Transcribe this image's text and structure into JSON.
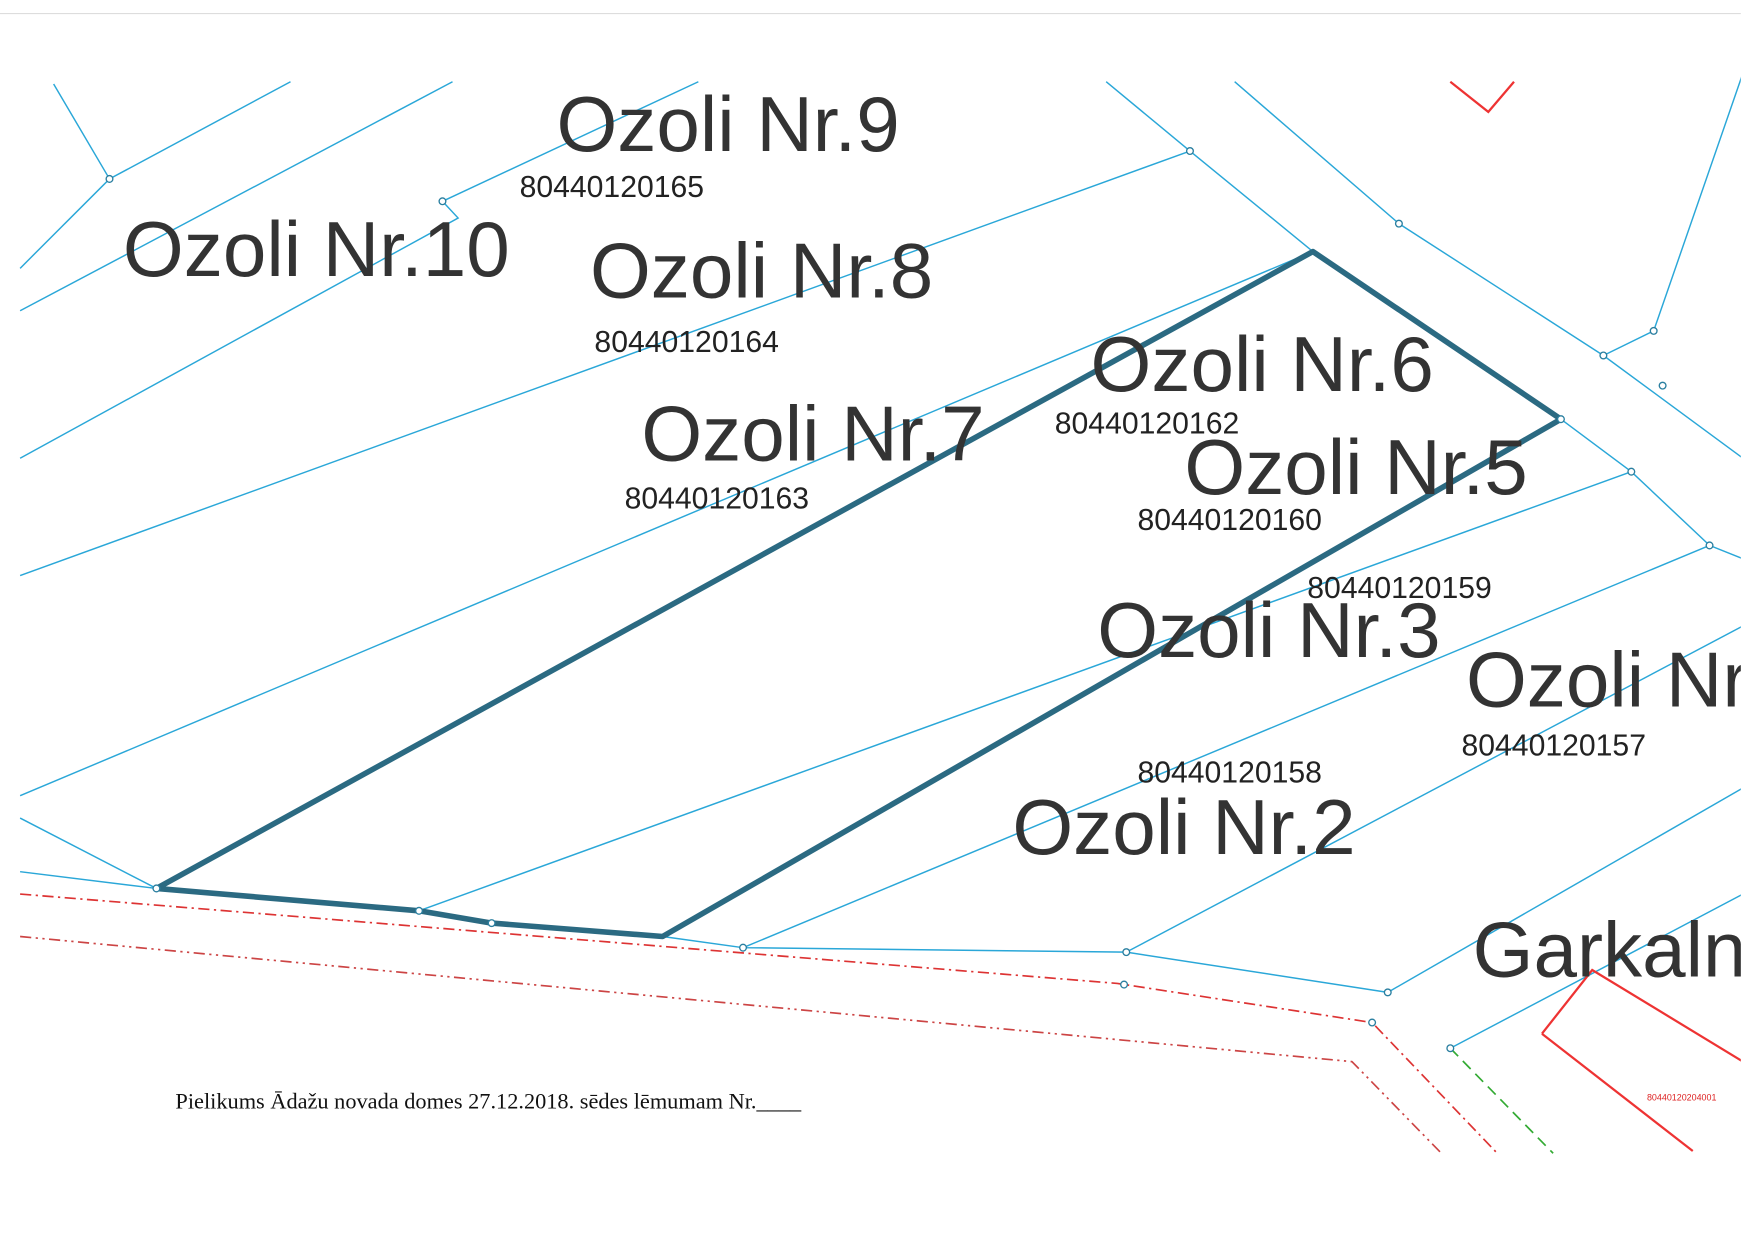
{
  "parcels": [
    {
      "name": "Ozoli Nr.9",
      "code": "80440120165"
    },
    {
      "name": "Ozoli Nr.10"
    },
    {
      "name": "Ozoli Nr.8",
      "code": "80440120164"
    },
    {
      "name": "Ozoli Nr.7",
      "code": "80440120163"
    },
    {
      "name": "Ozoli Nr.6",
      "code": "80440120162"
    },
    {
      "name": "Ozoli Nr.5",
      "code": "80440120160"
    },
    {
      "code": "80440120159"
    },
    {
      "name": "Ozoli Nr.3"
    },
    {
      "name": "Ozoli Nr",
      "code": "80440120157"
    },
    {
      "name": "Ozoli Nr.2",
      "code": "80440120158"
    }
  ],
  "street": "Garkalng",
  "small_code": "80440120204001",
  "footer": "Pielikums Ādažu novada domes 27.12.2018. sēdes lēmumam Nr.____"
}
